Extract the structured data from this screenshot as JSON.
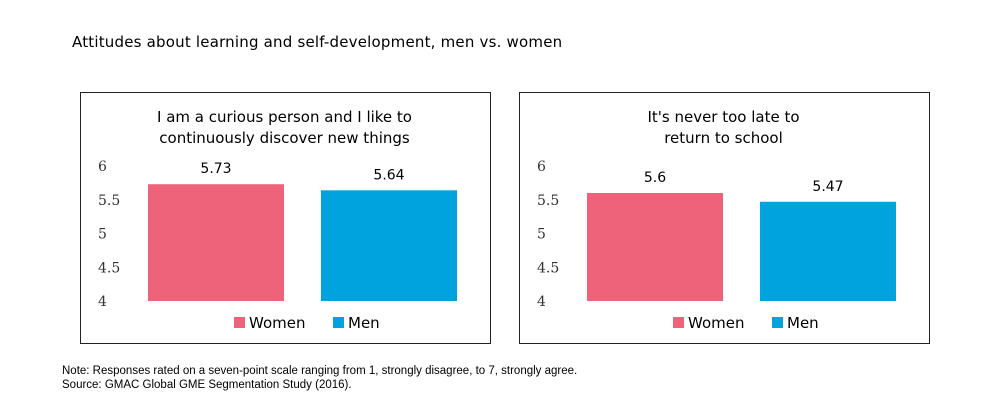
{
  "title": "Attitudes about learning and self-development, men vs. women",
  "colors": {
    "women": "#EE6379",
    "men": "#00A3DD"
  },
  "chart_data": [
    {
      "type": "bar",
      "title_lines": [
        "I am a curious person and I like to",
        "continuously discover new things"
      ],
      "categories": [
        "Women",
        "Men"
      ],
      "values": [
        5.73,
        5.64
      ],
      "data_labels": [
        "5.73",
        "5.64"
      ],
      "ylim": [
        4,
        6
      ],
      "yticks": [
        "4",
        "4.5",
        "5",
        "5.5",
        "6"
      ],
      "grid": false,
      "legend": {
        "position": "bottom",
        "entries": [
          "Women",
          "Men"
        ]
      }
    },
    {
      "type": "bar",
      "title_lines": [
        "It's never too late to",
        "return to school"
      ],
      "categories": [
        "Women",
        "Men"
      ],
      "values": [
        5.6,
        5.47
      ],
      "data_labels": [
        "5.6",
        "5.47"
      ],
      "ylim": [
        4,
        6
      ],
      "yticks": [
        "4",
        "4.5",
        "5",
        "5.5",
        "6"
      ],
      "grid": false,
      "legend": {
        "position": "bottom",
        "entries": [
          "Women",
          "Men"
        ]
      }
    }
  ],
  "note": "Note: Responses rated on a seven-point scale ranging from 1, strongly disagree, to 7, strongly agree.",
  "source": "Source: GMAC Global GME Segmentation Study (2016)."
}
